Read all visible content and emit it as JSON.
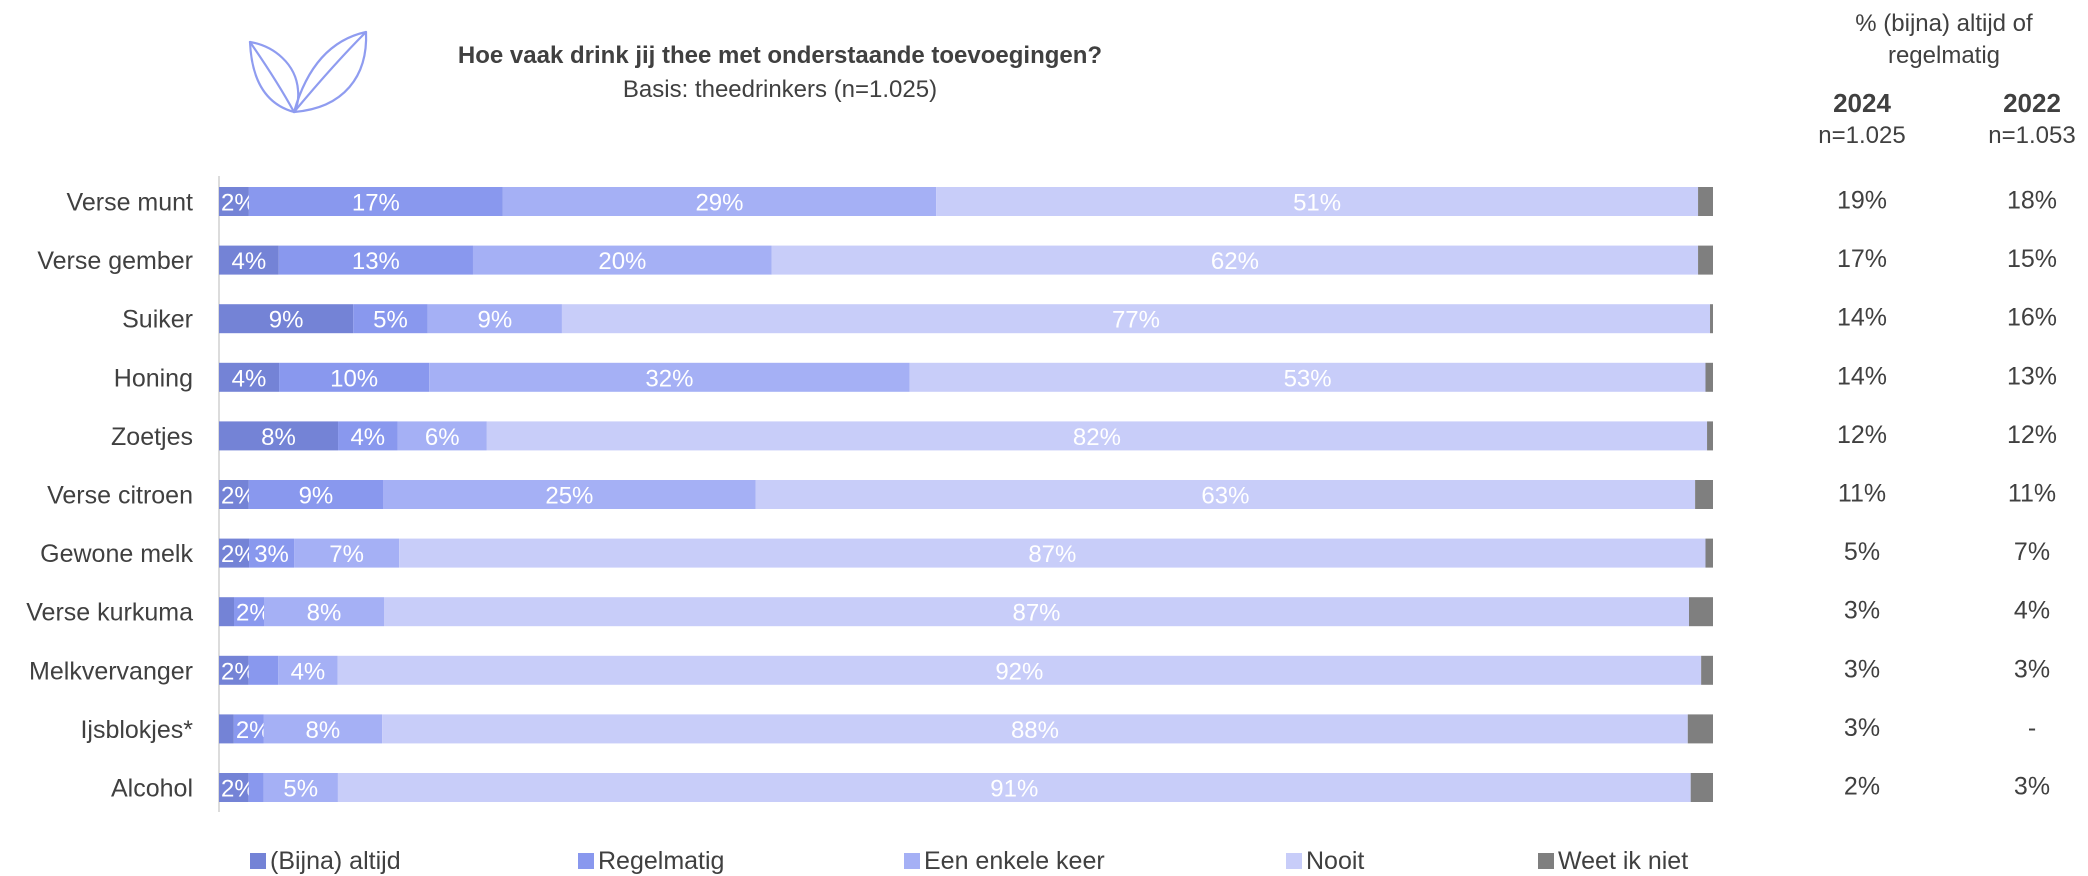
{
  "title": "Hoe vaak drink jij thee met onderstaande toevoegingen?",
  "subtitle": "Basis: theedrinkers (n=1.025)",
  "icon": "leaf-icon",
  "right_panel": {
    "heading": "% (bijna) altijd of regelmatig",
    "columns": [
      {
        "year": "2024",
        "n": "n=1.025"
      },
      {
        "year": "2022",
        "n": "n=1.053"
      }
    ]
  },
  "colors": {
    "bijna_altijd": "#7483d6",
    "regelmatig": "#8998ee",
    "een_enkele_keer": "#a5b0f5",
    "nooit": "#c8cdf9",
    "weet_ik_niet": "#7f7f7f",
    "text": "#404040",
    "axis": "#d0d0d0"
  },
  "chart_data": {
    "type": "bar",
    "orientation": "horizontal",
    "stacked": true,
    "title": "Hoe vaak drink jij thee met onderstaande toevoegingen?",
    "subtitle": "Basis: theedrinkers (n=1.025)",
    "xlim": [
      0,
      100
    ],
    "grid": false,
    "legend_position": "bottom",
    "categories": [
      "Verse munt",
      "Verse gember",
      "Suiker",
      "Honing",
      "Zoetjes",
      "Verse citroen",
      "Gewone melk",
      "Verse kurkuma",
      "Melkvervanger",
      "Ijsblokjes*",
      "Alcohol"
    ],
    "series": [
      {
        "name": "(Bijna) altijd",
        "values": [
          2,
          4,
          9,
          4,
          8,
          2,
          2,
          1,
          2,
          1,
          2
        ],
        "labels": [
          "2%",
          "4%",
          "9%",
          "4%",
          "8%",
          "2%",
          "2%",
          "",
          "2%",
          "",
          "2%"
        ]
      },
      {
        "name": "Regelmatig",
        "values": [
          17,
          13,
          5,
          10,
          4,
          9,
          3,
          2,
          2,
          2,
          1
        ],
        "labels": [
          "17%",
          "13%",
          "5%",
          "10%",
          "4%",
          "9%",
          "3%",
          "2%",
          "",
          "2%",
          ""
        ]
      },
      {
        "name": "Een enkele keer",
        "values": [
          29,
          20,
          9,
          32,
          6,
          25,
          7,
          8,
          4,
          8,
          5
        ],
        "labels": [
          "29%",
          "20%",
          "9%",
          "32%",
          "6%",
          "25%",
          "7%",
          "8%",
          "4%",
          "8%",
          "5%"
        ]
      },
      {
        "name": "Nooit",
        "values": [
          51,
          62,
          77,
          53,
          82,
          63,
          87,
          87,
          92,
          88,
          91
        ],
        "labels": [
          "51%",
          "62%",
          "77%",
          "53%",
          "82%",
          "63%",
          "87%",
          "87%",
          "92%",
          "88%",
          "91%"
        ]
      },
      {
        "name": "Weet ik niet",
        "values": [
          1,
          1,
          0.2,
          0.5,
          0.4,
          1.2,
          0.5,
          1.6,
          0.8,
          1.7,
          1.5
        ],
        "labels": [
          "",
          "",
          "",
          "",
          "",
          "",
          "",
          "",
          "",
          "",
          ""
        ]
      }
    ],
    "summary_2024": [
      "19%",
      "17%",
      "14%",
      "14%",
      "12%",
      "11%",
      "5%",
      "3%",
      "3%",
      "3%",
      "2%"
    ],
    "summary_2022": [
      "18%",
      "15%",
      "16%",
      "13%",
      "12%",
      "11%",
      "7%",
      "4%",
      "3%",
      "-",
      "3%"
    ]
  }
}
